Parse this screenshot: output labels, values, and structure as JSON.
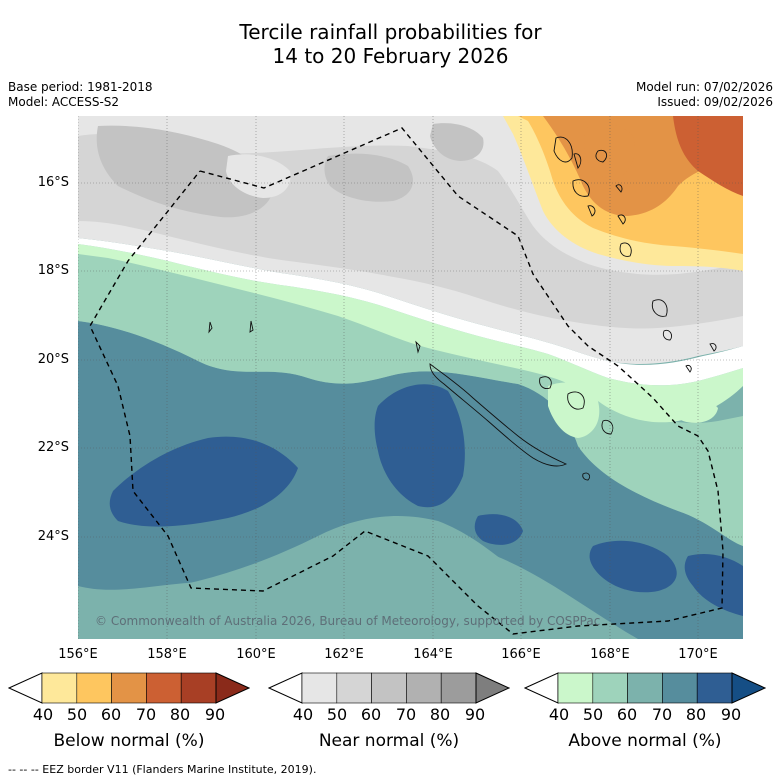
{
  "title": {
    "line1": "Tercile rainfall probabilities for",
    "line2": "14 to 20 February 2026"
  },
  "meta": {
    "base_period": "Base period: 1981-2018",
    "model": "Model: ACCESS-S2",
    "model_run": "Model run: 07/02/2026",
    "issued": "Issued: 09/02/2026"
  },
  "map": {
    "lat_labels": [
      "16°S",
      "18°S",
      "20°S",
      "22°S",
      "24°S"
    ],
    "lon_labels": [
      "156°E",
      "158°E",
      "160°E",
      "162°E",
      "164°E",
      "166°E",
      "168°E",
      "170°E"
    ],
    "copyright": "© Commonwealth of Australia 2026, Bureau of Meteorology, supported by COSPPac"
  },
  "colorbars": [
    {
      "label": "Below normal (%)",
      "ticks": [
        "40",
        "50",
        "60",
        "70",
        "80",
        "90"
      ],
      "colors": [
        "#ffffff",
        "#fee89a",
        "#fec65f",
        "#e39346",
        "#cc6033",
        "#a83f25",
        "#8a2a1a"
      ]
    },
    {
      "label": "Near normal (%)",
      "ticks": [
        "40",
        "50",
        "60",
        "70",
        "80",
        "90"
      ],
      "colors": [
        "#ffffff",
        "#e6e6e6",
        "#d5d5d5",
        "#c3c3c3",
        "#b1b1b1",
        "#9c9c9c",
        "#7e7e7e"
      ]
    },
    {
      "label": "Above normal (%)",
      "ticks": [
        "40",
        "50",
        "60",
        "70",
        "80",
        "90"
      ],
      "colors": [
        "#ffffff",
        "#cbf7cb",
        "#9ed3bb",
        "#7cb2ac",
        "#568d9d",
        "#2f5e93",
        "#154e85"
      ]
    }
  ],
  "footnote": "-- -- -- EEZ border V11 (Flanders Marine Institute, 2019)."
}
